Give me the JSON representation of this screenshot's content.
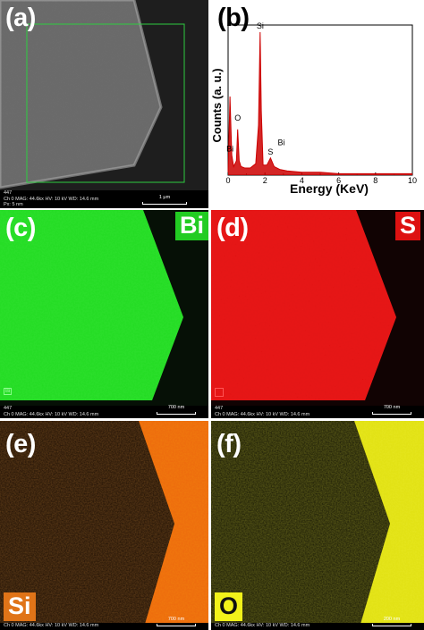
{
  "panels": {
    "a": {
      "letter": "(a)",
      "footer": [
        "447",
        "Ch 0   MAG: 44.6kx   HV: 10 kV   WD: 14.6 mm",
        "Px: 5 nm"
      ],
      "scale": "1 μm"
    },
    "b": {
      "letter": "(b)",
      "peak_labels": [
        "Si",
        "O",
        "Bi",
        "S",
        "Bi"
      ]
    },
    "c": {
      "letter": "(c)",
      "element": "Bi",
      "mini_label": "Bi",
      "footer": [
        "447",
        "Ch 0   MAG: 44.6kx   HV: 10 kV   WD: 14.6 mm"
      ],
      "scale": "700 nm",
      "color": "#22dd22"
    },
    "d": {
      "letter": "(d)",
      "element": "S",
      "footer": [
        "447",
        "Ch 0   MAG: 44.6kx   HV: 10 kV   WD: 14.6 mm"
      ],
      "scale": "700 nm",
      "color": "#e01515"
    },
    "e": {
      "letter": "(e)",
      "element": "Si",
      "footer": [
        "Ch 0   MAG: 44.6kx   HV: 10 kV   WD: 14.6 mm"
      ],
      "scale": "700 nm",
      "color": "#f07a10"
    },
    "f": {
      "letter": "(f)",
      "element": "O",
      "footer": [
        "Ch 0   MAG: 44.6kx   HV: 10 kV   WD: 14.6 mm"
      ],
      "scale": "200 nm",
      "color": "#e8e81a"
    }
  },
  "chart_data": {
    "type": "line",
    "xlabel": "Energy (KeV)",
    "ylabel": "Counts (a. u.)",
    "xlim": [
      0,
      10
    ],
    "xticks": [
      0,
      2,
      4,
      6,
      8,
      10
    ],
    "grid": false,
    "series": [
      {
        "color": "#cc0000",
        "x": [
          0.0,
          0.1,
          0.2,
          0.3,
          0.45,
          0.52,
          0.6,
          0.7,
          0.9,
          1.2,
          1.5,
          1.65,
          1.74,
          1.8,
          1.9,
          2.1,
          2.3,
          2.5,
          2.8,
          3.2,
          4.0,
          5.0,
          6.0,
          7.0,
          8.0,
          9.0,
          10.0
        ],
        "y": [
          0.02,
          0.55,
          0.14,
          0.06,
          0.1,
          0.32,
          0.1,
          0.06,
          0.05,
          0.05,
          0.08,
          0.35,
          1.0,
          0.45,
          0.07,
          0.07,
          0.12,
          0.06,
          0.04,
          0.03,
          0.02,
          0.02,
          0.01,
          0.01,
          0.01,
          0.01,
          0.01
        ]
      }
    ],
    "annotations": [
      {
        "text": "Si",
        "x": 1.74,
        "y": 1.0
      },
      {
        "text": "O",
        "x": 0.52,
        "y": 0.32
      },
      {
        "text": "Bi",
        "x": 0.2,
        "y": 0.14
      },
      {
        "text": "S",
        "x": 2.3,
        "y": 0.12
      },
      {
        "text": "Bi",
        "x": 2.5,
        "y": 0.16
      }
    ]
  }
}
